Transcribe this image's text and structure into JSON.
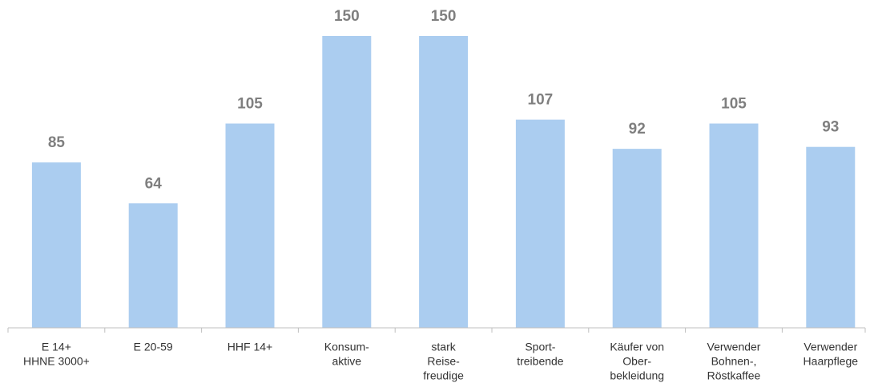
{
  "chart_data": {
    "type": "bar",
    "categories": [
      [
        "E 14+",
        "HHNE 3000+"
      ],
      [
        "E 20-59"
      ],
      [
        "HHF 14+"
      ],
      [
        "Konsum-",
        "aktive"
      ],
      [
        "stark",
        "Reise-",
        "freudige"
      ],
      [
        "Sport-",
        "treibende"
      ],
      [
        "Käufer von",
        "Ober-",
        "bekleidung"
      ],
      [
        "Verwender",
        "Bohnen-,",
        "Röstkaffee"
      ],
      [
        "Verwender",
        "Haarpflege"
      ]
    ],
    "values": [
      85,
      64,
      105,
      150,
      150,
      107,
      92,
      105,
      93
    ],
    "color": "#abcdf0",
    "ylim": [
      0,
      150
    ]
  }
}
